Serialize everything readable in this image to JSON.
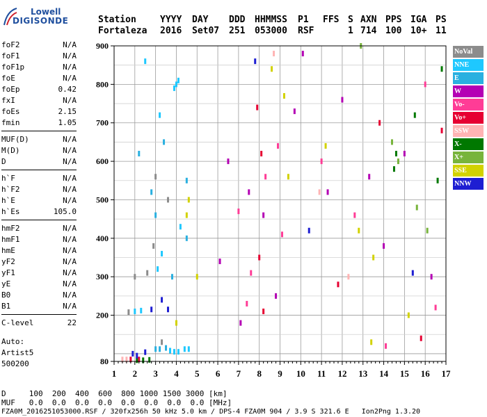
{
  "logo": {
    "line1": "Lowell",
    "line2": "DIGISONDE"
  },
  "header": {
    "labels": [
      "Station",
      "YYYY",
      "DAY",
      "DDD",
      "HHMMSS",
      "P1",
      "FFS",
      "S",
      "AXN",
      "PPS",
      "IGA",
      "PS"
    ],
    "values": [
      "Fortaleza",
      "2016",
      "Set07",
      "251",
      "053000",
      "RSF",
      "1",
      "714",
      "100",
      "10+",
      "11"
    ]
  },
  "params": [
    [
      {
        "k": "foF2",
        "v": "N/A"
      },
      {
        "k": "foF1",
        "v": "N/A"
      },
      {
        "k": "foF1p",
        "v": "N/A"
      },
      {
        "k": "foE",
        "v": "N/A"
      },
      {
        "k": "foEp",
        "v": "0.42"
      },
      {
        "k": "fxI",
        "v": "N/A"
      },
      {
        "k": "foEs",
        "v": "2.15"
      },
      {
        "k": "fmin",
        "v": "1.05"
      }
    ],
    [
      {
        "k": "MUF(D)",
        "v": "N/A"
      },
      {
        "k": "M(D)",
        "v": "N/A"
      },
      {
        "k": "D",
        "v": "N/A"
      }
    ],
    [
      {
        "k": "h`F",
        "v": "N/A"
      },
      {
        "k": "h`F2",
        "v": "N/A"
      },
      {
        "k": "h`E",
        "v": "N/A"
      },
      {
        "k": "h`Es",
        "v": "105.0"
      }
    ],
    [
      {
        "k": "hmF2",
        "v": "N/A"
      },
      {
        "k": "hmF1",
        "v": "N/A"
      },
      {
        "k": "hmE",
        "v": "N/A"
      },
      {
        "k": "yF2",
        "v": "N/A"
      },
      {
        "k": "yF1",
        "v": "N/A"
      },
      {
        "k": "yE",
        "v": "N/A"
      },
      {
        "k": "B0",
        "v": "N/A"
      },
      {
        "k": "B1",
        "v": "N/A"
      }
    ],
    [
      {
        "k": "C-level",
        "v": "22"
      }
    ]
  ],
  "auto": {
    "line1": "Auto:",
    "line2": "Artist5",
    "line3": "500200"
  },
  "legend": [
    {
      "label": "NoVal",
      "color": "#8c8c8c"
    },
    {
      "label": "NNE",
      "color": "#1ec8ff"
    },
    {
      "label": "E",
      "color": "#2ab0e0"
    },
    {
      "label": "W",
      "color": "#b400b4"
    },
    {
      "label": "Vo-",
      "color": "#ff3c96"
    },
    {
      "label": "Vo+",
      "color": "#e60032"
    },
    {
      "label": "SSW",
      "color": "#ffb4b4"
    },
    {
      "label": "X-",
      "color": "#007800"
    },
    {
      "label": "X+",
      "color": "#78b43c"
    },
    {
      "label": "SSE",
      "color": "#d2d200"
    },
    {
      "label": "NNW",
      "color": "#1e1ed2"
    }
  ],
  "footer": {
    "line1": "D     100  200  400  600  800 1000 1500 3000 [km]",
    "line2": "MUF   0.0  0.0  0.0  0.0  0.0  0.0  0.0  0.0 [MHz]",
    "line3": "FZA0M_2016251053000.RSF / 320fx256h 50 kHz 5.0 km / DPS-4 FZA0M 904 / 3.9 S 321.6 E   Ion2Png 1.3.20"
  },
  "chart_data": {
    "type": "scatter",
    "title": "",
    "xlabel": "",
    "ylabel": "",
    "xlim": [
      1,
      17
    ],
    "ylim": [
      80,
      900
    ],
    "x_ticks": [
      1,
      2,
      3,
      4,
      5,
      6,
      7,
      8,
      9,
      10,
      11,
      12,
      13,
      14,
      15,
      16,
      17
    ],
    "y_ticks": [
      80,
      200,
      300,
      400,
      500,
      600,
      700,
      800,
      900
    ],
    "grid": true,
    "series": [
      {
        "name": "NNE",
        "color": "#1ec8ff",
        "points": [
          [
            3.9,
            105
          ],
          [
            4.1,
            105
          ],
          [
            4.4,
            112
          ],
          [
            4.6,
            112
          ],
          [
            3.7,
            108
          ],
          [
            3.9,
            790
          ],
          [
            4.0,
            800
          ],
          [
            4.1,
            810
          ],
          [
            2.0,
            210
          ],
          [
            2.3,
            212
          ],
          [
            3.1,
            320
          ],
          [
            3.3,
            360
          ],
          [
            4.2,
            430
          ],
          [
            2.5,
            860
          ],
          [
            3.2,
            720
          ]
        ]
      },
      {
        "name": "E",
        "color": "#2ab0e0",
        "points": [
          [
            3.0,
            112
          ],
          [
            3.2,
            112
          ],
          [
            3.5,
            115
          ],
          [
            2.8,
            520
          ],
          [
            3.4,
            650
          ],
          [
            4.5,
            400
          ],
          [
            4.5,
            550
          ],
          [
            3.8,
            300
          ],
          [
            2.2,
            620
          ],
          [
            3.0,
            460
          ]
        ]
      },
      {
        "name": "W",
        "color": "#b400b4",
        "points": [
          [
            6.5,
            600
          ],
          [
            7.5,
            520
          ],
          [
            8.2,
            460
          ],
          [
            9.7,
            730
          ],
          [
            10.1,
            880
          ],
          [
            12.0,
            760
          ],
          [
            13.3,
            560
          ],
          [
            14.0,
            380
          ],
          [
            15.0,
            620
          ],
          [
            16.3,
            300
          ],
          [
            11.3,
            520
          ],
          [
            6.1,
            340
          ],
          [
            7.1,
            180
          ],
          [
            8.8,
            250
          ]
        ]
      },
      {
        "name": "Vo-",
        "color": "#ff3c96",
        "points": [
          [
            7.0,
            470
          ],
          [
            7.6,
            310
          ],
          [
            8.3,
            560
          ],
          [
            9.1,
            410
          ],
          [
            11.0,
            600
          ],
          [
            12.6,
            460
          ],
          [
            14.1,
            120
          ],
          [
            16.0,
            800
          ],
          [
            16.5,
            220
          ],
          [
            7.4,
            230
          ],
          [
            8.9,
            640
          ]
        ]
      },
      {
        "name": "Vo+",
        "color": "#e60032",
        "points": [
          [
            1.8,
            85
          ],
          [
            2.2,
            85
          ],
          [
            7.9,
            740
          ],
          [
            8.1,
            620
          ],
          [
            8.0,
            350
          ],
          [
            8.2,
            210
          ],
          [
            13.8,
            700
          ],
          [
            16.8,
            680
          ],
          [
            11.8,
            280
          ],
          [
            15.8,
            140
          ]
        ]
      },
      {
        "name": "SSW",
        "color": "#ffb4b4",
        "points": [
          [
            1.4,
            85
          ],
          [
            1.6,
            85
          ],
          [
            10.9,
            520
          ],
          [
            12.3,
            300
          ],
          [
            8.7,
            880
          ]
        ]
      },
      {
        "name": "X-",
        "color": "#007800",
        "points": [
          [
            2.1,
            83
          ],
          [
            2.4,
            83
          ],
          [
            2.7,
            84
          ],
          [
            14.5,
            580
          ],
          [
            14.6,
            620
          ],
          [
            15.5,
            720
          ],
          [
            16.6,
            550
          ],
          [
            16.8,
            840
          ]
        ]
      },
      {
        "name": "X+",
        "color": "#78b43c",
        "points": [
          [
            14.4,
            650
          ],
          [
            14.7,
            600
          ],
          [
            16.1,
            420
          ],
          [
            15.6,
            480
          ],
          [
            12.9,
            900
          ]
        ]
      },
      {
        "name": "SSE",
        "color": "#d2d200",
        "points": [
          [
            4.5,
            460
          ],
          [
            4.6,
            500
          ],
          [
            9.2,
            770
          ],
          [
            9.4,
            560
          ],
          [
            11.2,
            640
          ],
          [
            12.8,
            420
          ],
          [
            13.5,
            350
          ],
          [
            15.2,
            200
          ],
          [
            13.4,
            130
          ],
          [
            5.0,
            300
          ],
          [
            4.0,
            180
          ],
          [
            8.6,
            840
          ]
        ]
      },
      {
        "name": "NNW",
        "color": "#1e1ed2",
        "points": [
          [
            1.9,
            100
          ],
          [
            2.1,
            95
          ],
          [
            2.5,
            104
          ],
          [
            2.8,
            215
          ],
          [
            3.6,
            215
          ],
          [
            7.8,
            860
          ],
          [
            15.4,
            310
          ],
          [
            10.4,
            420
          ],
          [
            3.3,
            240
          ]
        ]
      },
      {
        "name": "NoVal",
        "color": "#8c8c8c",
        "points": [
          [
            2.0,
            300
          ],
          [
            2.6,
            310
          ],
          [
            3.0,
            560
          ],
          [
            3.6,
            500
          ],
          [
            3.3,
            130
          ],
          [
            1.7,
            208
          ],
          [
            2.9,
            380
          ]
        ]
      }
    ]
  }
}
